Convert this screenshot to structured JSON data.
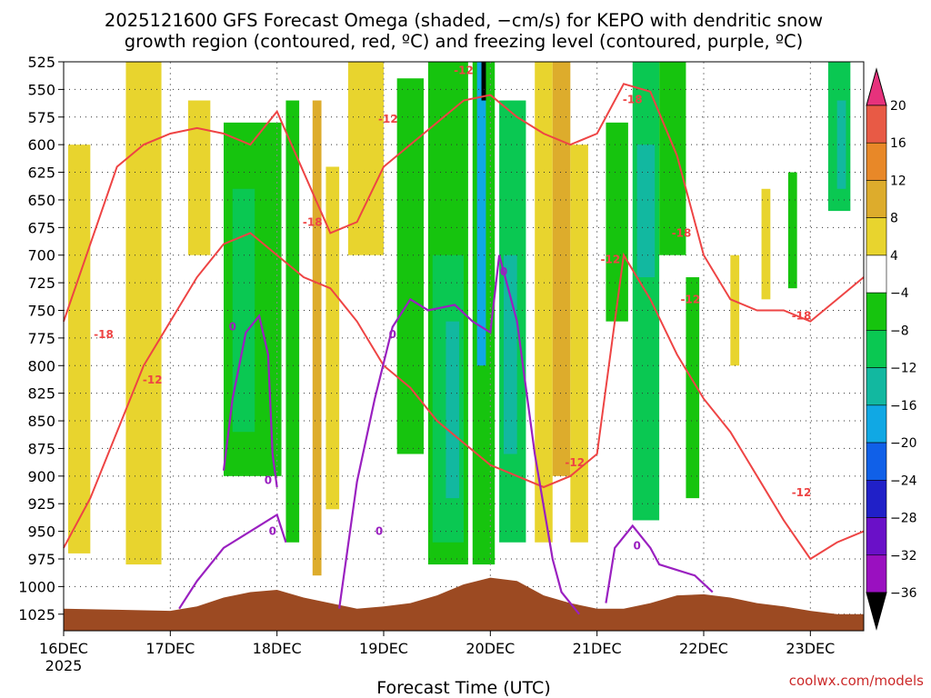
{
  "chart_data": {
    "type": "heatmap",
    "title_line1": "2025121600 GFS Forecast Omega (shaded, −cm/s) for KEPO with dendritic snow",
    "title_line2": "growth region (contoured, red, ºC) and freezing level (contoured, purple, ºC)",
    "xlabel": "Forecast Time (UTC)",
    "ylabel": "",
    "watermark": "coolwx.com/models",
    "x_ticks": [
      "16DEC",
      "17DEC",
      "18DEC",
      "19DEC",
      "20DEC",
      "21DEC",
      "22DEC",
      "23DEC"
    ],
    "x_tick_values": [
      0,
      24,
      48,
      72,
      96,
      120,
      144,
      168
    ],
    "x_year_label": "2025",
    "xlim": [
      0,
      180
    ],
    "y_ticks": [
      525,
      550,
      575,
      600,
      625,
      650,
      675,
      700,
      725,
      750,
      775,
      800,
      825,
      850,
      875,
      900,
      925,
      950,
      975,
      1000,
      1025
    ],
    "ylim": [
      525,
      1040
    ],
    "y_inverted": true,
    "colorbar": {
      "labels": [
        "20",
        "16",
        "12",
        "8",
        "4",
        "−4",
        "−8",
        "−12",
        "−16",
        "−20",
        "−24",
        "−28",
        "−32",
        "−36"
      ],
      "levels": [
        20,
        16,
        12,
        8,
        4,
        -4,
        -8,
        -12,
        -16,
        -20,
        -24,
        -28,
        -32,
        -36
      ],
      "colors": [
        "#e8d42e",
        "#ddac2c",
        "#e88828",
        "#e85a45",
        "#e6327c",
        "#16c40e",
        "#0ac852",
        "#12b8a0",
        "#10a8e4",
        "#1060e8",
        "#2020c8",
        "#6a10c8",
        "#9a10c0",
        "#a8a8a8"
      ],
      "neutral_color": "#ffffff"
    },
    "colors": {
      "dgz_contour": "#ee4444",
      "freezing_contour": "#9a20c0",
      "terrain": "#9c4a22"
    },
    "contour_labels": [
      {
        "text": "-18",
        "x": 9,
        "p": 772,
        "kind": "dgz"
      },
      {
        "text": "-12",
        "x": 20,
        "p": 813,
        "kind": "dgz"
      },
      {
        "text": "-18",
        "x": 56,
        "p": 670,
        "kind": "dgz"
      },
      {
        "text": "-12",
        "x": 73,
        "p": 577,
        "kind": "dgz"
      },
      {
        "text": "-12",
        "x": 90,
        "p": 533,
        "kind": "dgz"
      },
      {
        "text": "-12",
        "x": 115,
        "p": 888,
        "kind": "dgz"
      },
      {
        "text": "-18",
        "x": 128,
        "p": 559,
        "kind": "dgz"
      },
      {
        "text": "-12",
        "x": 123,
        "p": 704,
        "kind": "dgz"
      },
      {
        "text": "-18",
        "x": 139,
        "p": 680,
        "kind": "dgz"
      },
      {
        "text": "-12",
        "x": 141,
        "p": 740,
        "kind": "dgz"
      },
      {
        "text": "-18",
        "x": 166,
        "p": 755,
        "kind": "dgz"
      },
      {
        "text": "-12",
        "x": 166,
        "p": 915,
        "kind": "dgz"
      },
      {
        "text": "0",
        "x": 38,
        "p": 765,
        "kind": "fz"
      },
      {
        "text": "0",
        "x": 46,
        "p": 904,
        "kind": "fz"
      },
      {
        "text": "0",
        "x": 47,
        "p": 950,
        "kind": "fz"
      },
      {
        "text": "0",
        "x": 71,
        "p": 950,
        "kind": "fz"
      },
      {
        "text": "0",
        "x": 74,
        "p": 772,
        "kind": "fz"
      },
      {
        "text": "0",
        "x": 99,
        "p": 715,
        "kind": "fz"
      },
      {
        "text": "0",
        "x": 129,
        "p": 963,
        "kind": "fz"
      }
    ],
    "dgz_bounds": {
      "x": [
        0,
        6,
        12,
        18,
        24,
        30,
        36,
        42,
        48,
        54,
        60,
        66,
        72,
        78,
        84,
        90,
        96,
        102,
        108,
        114,
        120,
        126,
        132,
        138,
        144,
        150,
        156,
        162,
        168,
        174,
        180
      ],
      "minus18_top": [
        760,
        690,
        620,
        600,
        590,
        585,
        590,
        600,
        570,
        625,
        680,
        670,
        620,
        600,
        580,
        560,
        555,
        575,
        590,
        600,
        590,
        545,
        552,
        610,
        700,
        740,
        750,
        750,
        760,
        740,
        720
      ],
      "minus12_bottom": [
        965,
        920,
        860,
        800,
        760,
        720,
        690,
        680,
        700,
        720,
        730,
        760,
        800,
        820,
        850,
        870,
        890,
        900,
        910,
        900,
        880,
        700,
        740,
        790,
        830,
        860,
        900,
        940,
        975,
        960,
        950
      ]
    },
    "freezing_level": [
      {
        "x": [
          26,
          30,
          36,
          40,
          44,
          48,
          50
        ],
        "p": [
          1020,
          995,
          965,
          955,
          945,
          935,
          960
        ]
      },
      {
        "x": [
          62,
          66,
          70,
          74,
          78,
          82,
          88,
          92,
          96,
          98,
          102,
          106,
          110,
          112,
          116
        ],
        "p": [
          1020,
          905,
          830,
          765,
          740,
          750,
          745,
          760,
          770,
          700,
          760,
          880,
          975,
          1005,
          1025
        ]
      },
      {
        "x": [
          122,
          124,
          128,
          132,
          134,
          138,
          142,
          146
        ],
        "p": [
          1015,
          965,
          945,
          965,
          980,
          985,
          990,
          1005
        ]
      },
      {
        "x": [
          36,
          38,
          41,
          44,
          46,
          47,
          48
        ],
        "p": [
          895,
          830,
          770,
          755,
          790,
          880,
          910
        ]
      }
    ],
    "terrain": {
      "x": [
        0,
        12,
        24,
        30,
        36,
        42,
        48,
        54,
        60,
        66,
        72,
        78,
        84,
        90,
        96,
        102,
        108,
        114,
        120,
        126,
        132,
        138,
        144,
        150,
        156,
        162,
        168,
        174,
        180
      ],
      "p": [
        1020,
        1021,
        1022,
        1018,
        1010,
        1005,
        1003,
        1010,
        1015,
        1020,
        1018,
        1015,
        1008,
        998,
        992,
        995,
        1008,
        1015,
        1020,
        1020,
        1015,
        1008,
        1007,
        1010,
        1015,
        1018,
        1022,
        1025,
        1025
      ]
    },
    "omega_bands": [
      {
        "x0": 1,
        "x1": 6,
        "p0": 600,
        "p1": 970,
        "value": 5
      },
      {
        "x0": 14,
        "x1": 22,
        "p0": 525,
        "p1": 980,
        "value": 6
      },
      {
        "x0": 28,
        "x1": 33,
        "p0": 560,
        "p1": 700,
        "value": 5
      },
      {
        "x0": 36,
        "x1": 49,
        "p0": 580,
        "p1": 900,
        "value": -7
      },
      {
        "x0": 38,
        "x1": 43,
        "p0": 640,
        "p1": 860,
        "value": -10
      },
      {
        "x0": 50,
        "x1": 53,
        "p0": 560,
        "p1": 960,
        "value": -6
      },
      {
        "x0": 56,
        "x1": 58,
        "p0": 560,
        "p1": 990,
        "value": 10
      },
      {
        "x0": 59,
        "x1": 62,
        "p0": 620,
        "p1": 930,
        "value": 6
      },
      {
        "x0": 64,
        "x1": 72,
        "p0": 525,
        "p1": 700,
        "value": 5
      },
      {
        "x0": 75,
        "x1": 81,
        "p0": 540,
        "p1": 880,
        "value": -6
      },
      {
        "x0": 82,
        "x1": 91,
        "p0": 525,
        "p1": 980,
        "value": -7
      },
      {
        "x0": 83,
        "x1": 90,
        "p0": 700,
        "p1": 960,
        "value": -10
      },
      {
        "x0": 86,
        "x1": 89,
        "p0": 760,
        "p1": 920,
        "value": -14
      },
      {
        "x0": 92,
        "x1": 97,
        "p0": 525,
        "p1": 980,
        "value": -6
      },
      {
        "x0": 93,
        "x1": 95,
        "p0": 525,
        "p1": 800,
        "value": -16
      },
      {
        "x0": 94,
        "x1": 95,
        "p0": 525,
        "p1": 560,
        "value": -36
      },
      {
        "x0": 98,
        "x1": 104,
        "p0": 560,
        "p1": 960,
        "value": -8
      },
      {
        "x0": 99,
        "x1": 102,
        "p0": 700,
        "p1": 880,
        "value": -12
      },
      {
        "x0": 106,
        "x1": 110,
        "p0": 525,
        "p1": 960,
        "value": 6
      },
      {
        "x0": 110,
        "x1": 114,
        "p0": 525,
        "p1": 900,
        "value": 9
      },
      {
        "x0": 114,
        "x1": 118,
        "p0": 600,
        "p1": 960,
        "value": 5
      },
      {
        "x0": 122,
        "x1": 127,
        "p0": 580,
        "p1": 760,
        "value": -6
      },
      {
        "x0": 128,
        "x1": 134,
        "p0": 525,
        "p1": 940,
        "value": -9
      },
      {
        "x0": 129,
        "x1": 133,
        "p0": 600,
        "p1": 720,
        "value": -12
      },
      {
        "x0": 134,
        "x1": 140,
        "p0": 525,
        "p1": 700,
        "value": -7
      },
      {
        "x0": 140,
        "x1": 143,
        "p0": 720,
        "p1": 920,
        "value": -6
      },
      {
        "x0": 150,
        "x1": 152,
        "p0": 700,
        "p1": 800,
        "value": 5
      },
      {
        "x0": 157,
        "x1": 159,
        "p0": 640,
        "p1": 740,
        "value": 5
      },
      {
        "x0": 163,
        "x1": 165,
        "p0": 625,
        "p1": 730,
        "value": -6
      },
      {
        "x0": 172,
        "x1": 177,
        "p0": 525,
        "p1": 660,
        "value": -8
      },
      {
        "x0": 174,
        "x1": 176,
        "p0": 560,
        "p1": 640,
        "value": -13
      }
    ]
  }
}
